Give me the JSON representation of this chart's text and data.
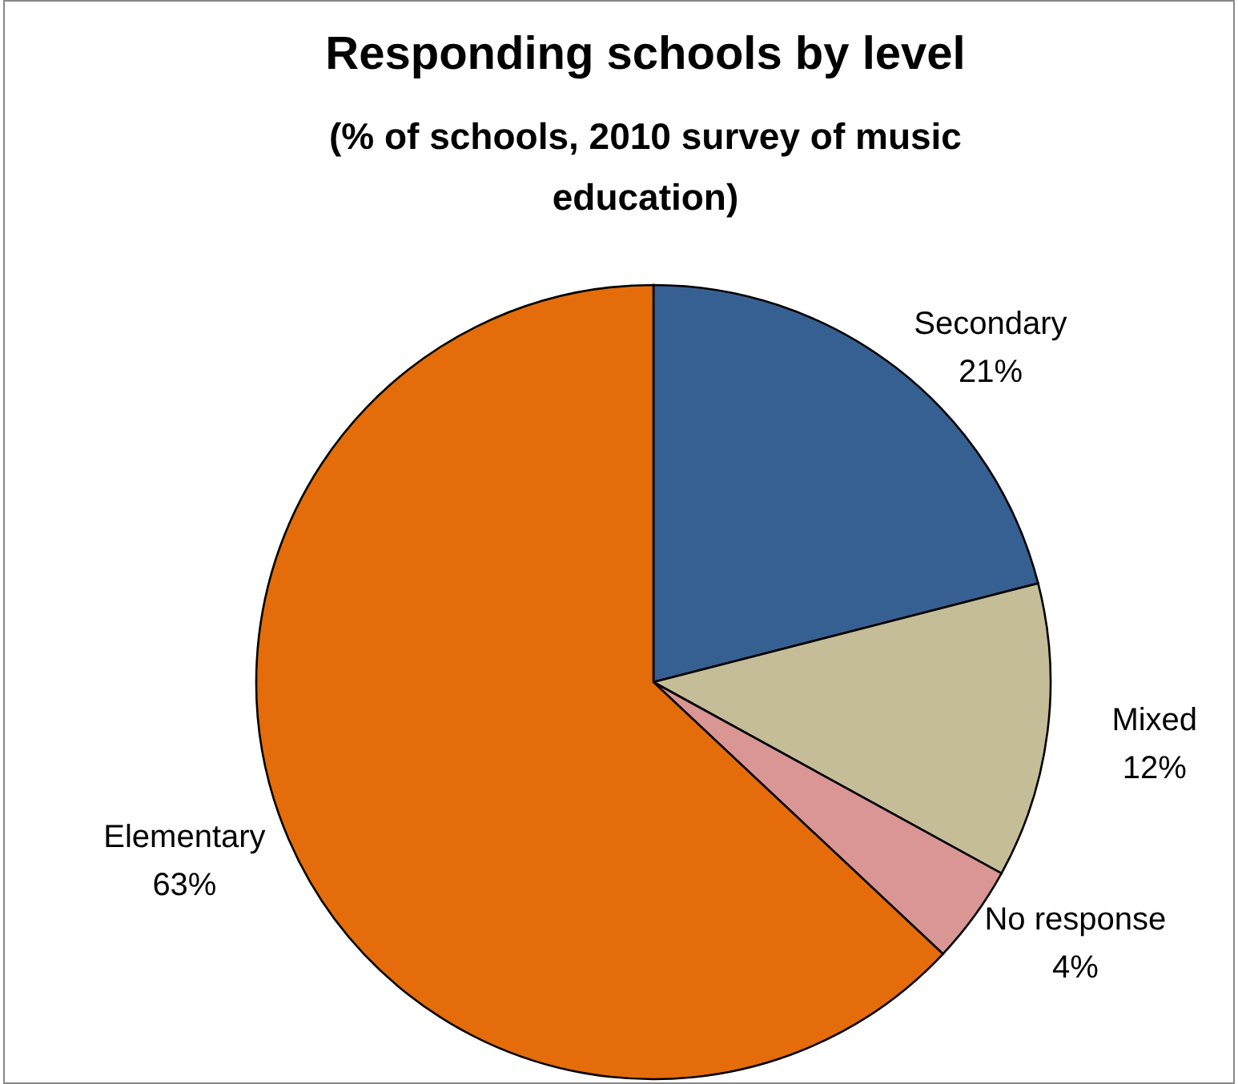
{
  "chart_data": {
    "type": "pie",
    "title": "Responding schools by level",
    "subtitle": "(% of schools, 2010 survey of music education)",
    "categories": [
      "Secondary",
      "Mixed",
      "No response",
      "Elementary"
    ],
    "values": [
      21,
      12,
      4,
      63
    ],
    "colors": [
      "#376092",
      "#c4bd97",
      "#d99694",
      "#e46c0a"
    ],
    "value_labels": [
      "21%",
      "12%",
      "4%",
      "63%"
    ]
  }
}
